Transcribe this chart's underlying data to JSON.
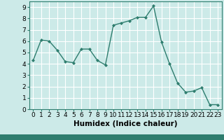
{
  "x": [
    0,
    1,
    2,
    3,
    4,
    5,
    6,
    7,
    8,
    9,
    10,
    11,
    12,
    13,
    14,
    15,
    16,
    17,
    18,
    19,
    20,
    21,
    22,
    23
  ],
  "y": [
    4.3,
    6.1,
    6.0,
    5.2,
    4.2,
    4.1,
    5.3,
    5.3,
    4.3,
    3.9,
    7.4,
    7.6,
    7.8,
    8.1,
    8.1,
    9.1,
    5.9,
    4.0,
    2.3,
    1.5,
    1.6,
    1.9,
    0.4,
    0.4
  ],
  "line_color": "#2e7d6e",
  "marker": "D",
  "marker_size": 2.0,
  "bg_color": "#cceae8",
  "grid_color": "#ffffff",
  "xlabel": "Humidex (Indice chaleur)",
  "xlim": [
    -0.5,
    23.5
  ],
  "ylim": [
    0,
    9.5
  ],
  "yticks": [
    0,
    1,
    2,
    3,
    4,
    5,
    6,
    7,
    8,
    9
  ],
  "xticks": [
    0,
    1,
    2,
    3,
    4,
    5,
    6,
    7,
    8,
    9,
    10,
    11,
    12,
    13,
    14,
    15,
    16,
    17,
    18,
    19,
    20,
    21,
    22,
    23
  ],
  "tick_fontsize": 6.5,
  "label_fontsize": 7.5,
  "line_width": 1.0,
  "spine_color": "#2e7d6e",
  "bottom_bar_color": "#2e7d6e"
}
